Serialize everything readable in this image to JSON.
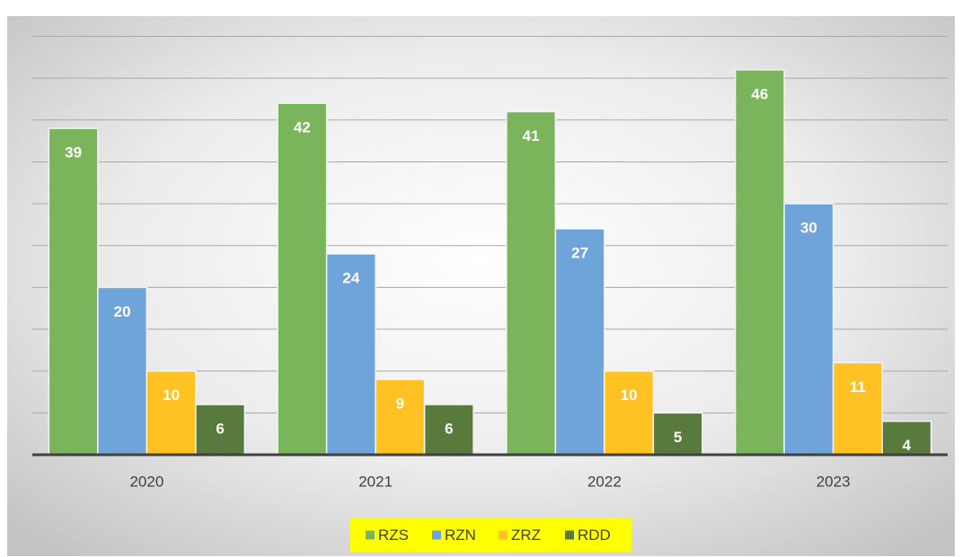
{
  "chart_data": {
    "type": "bar",
    "categories": [
      "2020",
      "2021",
      "2022",
      "2023"
    ],
    "series": [
      {
        "name": "RZS",
        "color": "#7ab55c",
        "values": [
          39,
          42,
          41,
          46
        ]
      },
      {
        "name": "RZN",
        "color": "#6fa4da",
        "values": [
          20,
          24,
          27,
          30
        ]
      },
      {
        "name": "ZRZ",
        "color": "#ffc222",
        "values": [
          10,
          9,
          10,
          11
        ]
      },
      {
        "name": "RDD",
        "color": "#587a3c",
        "values": [
          6,
          6,
          5,
          4
        ]
      }
    ],
    "ylim": [
      0,
      50
    ],
    "yticks": [
      0,
      5,
      10,
      15,
      20,
      25,
      30,
      35,
      40,
      45,
      50
    ],
    "grid": true,
    "legend": "bottom",
    "legend_background": "#ffff00"
  }
}
